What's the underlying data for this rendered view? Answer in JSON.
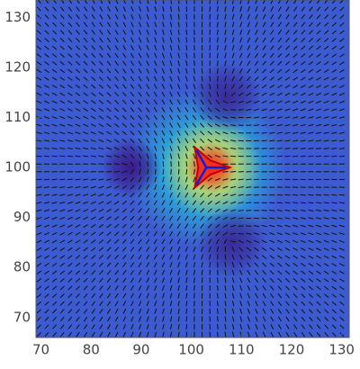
{
  "chart_data": {
    "type": "heatmap",
    "xlim": [
      69,
      131.5
    ],
    "ylim": [
      66,
      133.5
    ],
    "xticks": [
      70,
      80,
      90,
      100,
      110,
      120,
      130
    ],
    "yticks": [
      70,
      80,
      90,
      100,
      110,
      120,
      130
    ],
    "background_color": "#3d5bd0",
    "blobs": [
      {
        "x": 103,
        "y": 100,
        "r": 16,
        "color": "#20d0e0"
      },
      {
        "x": 104,
        "y": 100,
        "r": 10,
        "color": "#f0e040"
      },
      {
        "x": 104,
        "y": 100,
        "r": 5,
        "color": "#f03020"
      },
      {
        "x": 88,
        "y": 100,
        "r": 6,
        "color": "#3a1a8a"
      },
      {
        "x": 107,
        "y": 114,
        "r": 7,
        "color": "#3a2a9a"
      },
      {
        "x": 108,
        "y": 85,
        "r": 7,
        "color": "#3a2a9a"
      }
    ],
    "defects": [
      {
        "x": 88,
        "y": 100,
        "charge": 0.5
      },
      {
        "x": 107,
        "y": 114,
        "charge": 0.5
      },
      {
        "x": 108,
        "y": 85,
        "charge": 0.5
      },
      {
        "x": 103,
        "y": 100,
        "charge": -0.5
      }
    ]
  }
}
